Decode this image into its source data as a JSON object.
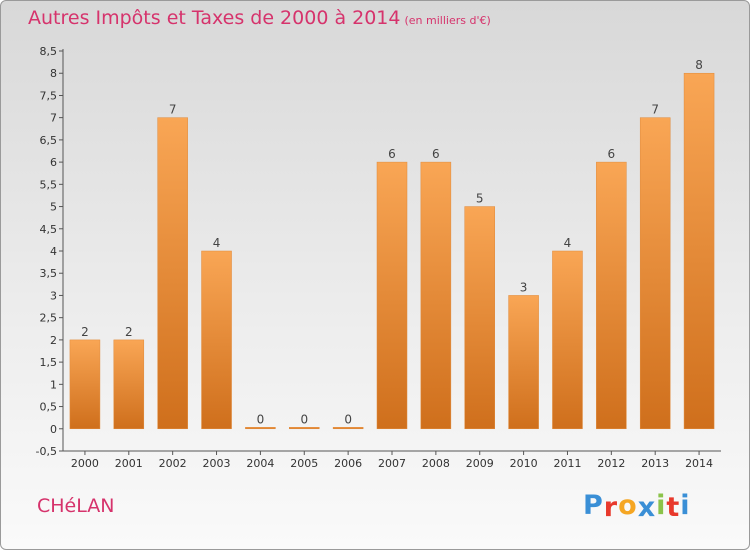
{
  "header": {
    "title": "Autres Impôts et Taxes de 2000 à 2014",
    "unit": "(en milliers d'€)"
  },
  "footer": {
    "commune": "CHéLAN",
    "logo": "Proxiti"
  },
  "colors": {
    "title": "#d6336c",
    "bar_light": "#f9a655",
    "bar_dark": "#cf6f1c",
    "logo_letters": [
      "#3a8fd6",
      "#e8392c",
      "#f5a623",
      "#3a8fd6",
      "#8bc34a",
      "#e8392c",
      "#3a8fd6"
    ]
  },
  "chart_data": {
    "type": "bar",
    "title": "Autres Impôts et Taxes de 2000 à 2014",
    "subtitle": "(en milliers d'€)",
    "categories": [
      "2000",
      "2001",
      "2002",
      "2003",
      "2004",
      "2005",
      "2006",
      "2007",
      "2008",
      "2009",
      "2010",
      "2011",
      "2012",
      "2013",
      "2014"
    ],
    "values": [
      2,
      2,
      7,
      4,
      0,
      0,
      0,
      6,
      6,
      5,
      3,
      4,
      6,
      7,
      8
    ],
    "ylim": [
      -0.5,
      8.5
    ],
    "yticks": [
      "-0,5",
      "0",
      "0,5",
      "1",
      "1,5",
      "2",
      "2,5",
      "3",
      "3,5",
      "4",
      "4,5",
      "5",
      "5,5",
      "6",
      "6,5",
      "7",
      "7,5",
      "8",
      "8,5"
    ],
    "grid": false,
    "legend": "none"
  }
}
